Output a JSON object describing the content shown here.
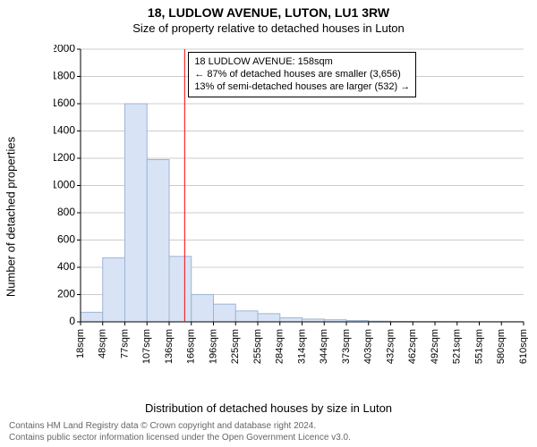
{
  "title": "18, LUDLOW AVENUE, LUTON, LU1 3RW",
  "subtitle": "Size of property relative to detached houses in Luton",
  "ylabel": "Number of detached properties",
  "xlabel": "Distribution of detached houses by size in Luton",
  "chart": {
    "type": "histogram",
    "background_color": "#ffffff",
    "bar_color": "#d8e4f5",
    "bar_stroke": "#9db4d6",
    "axis_color": "#000000",
    "grid_color": "#cccccc",
    "grid_on": true,
    "bar_width": 1.0,
    "ylim": [
      0,
      2000
    ],
    "ytick_step": 200,
    "yticks": [
      0,
      200,
      400,
      600,
      800,
      1000,
      1200,
      1400,
      1600,
      1800,
      2000
    ],
    "xtick_labels": [
      "18sqm",
      "48sqm",
      "77sqm",
      "107sqm",
      "136sqm",
      "166sqm",
      "196sqm",
      "225sqm",
      "255sqm",
      "284sqm",
      "314sqm",
      "344sqm",
      "373sqm",
      "403sqm",
      "432sqm",
      "462sqm",
      "492sqm",
      "521sqm",
      "551sqm",
      "580sqm",
      "610sqm"
    ],
    "values": [
      70,
      470,
      1600,
      1190,
      480,
      200,
      130,
      80,
      60,
      30,
      20,
      15,
      10,
      5,
      3,
      2,
      2,
      1,
      1,
      1
    ],
    "marker_line": {
      "value_sqm": 158,
      "index_position": 4.7,
      "color": "#ff0000",
      "width": 1
    },
    "label_fontsize": 13,
    "tick_fontsize": 11,
    "title_fontsize": 14
  },
  "annotation": {
    "lines": [
      "18 LUDLOW AVENUE: 158sqm",
      "← 87% of detached houses are smaller (3,656)",
      "13% of semi-detached houses are larger (532) →"
    ],
    "border_color": "#000000",
    "background_color": "#ffffff",
    "fontsize": 11
  },
  "footer": {
    "line1": "Contains HM Land Registry data © Crown copyright and database right 2024.",
    "line2": "Contains public sector information licensed under the Open Government Licence v3.0.",
    "color": "#666666",
    "fontsize": 10
  }
}
